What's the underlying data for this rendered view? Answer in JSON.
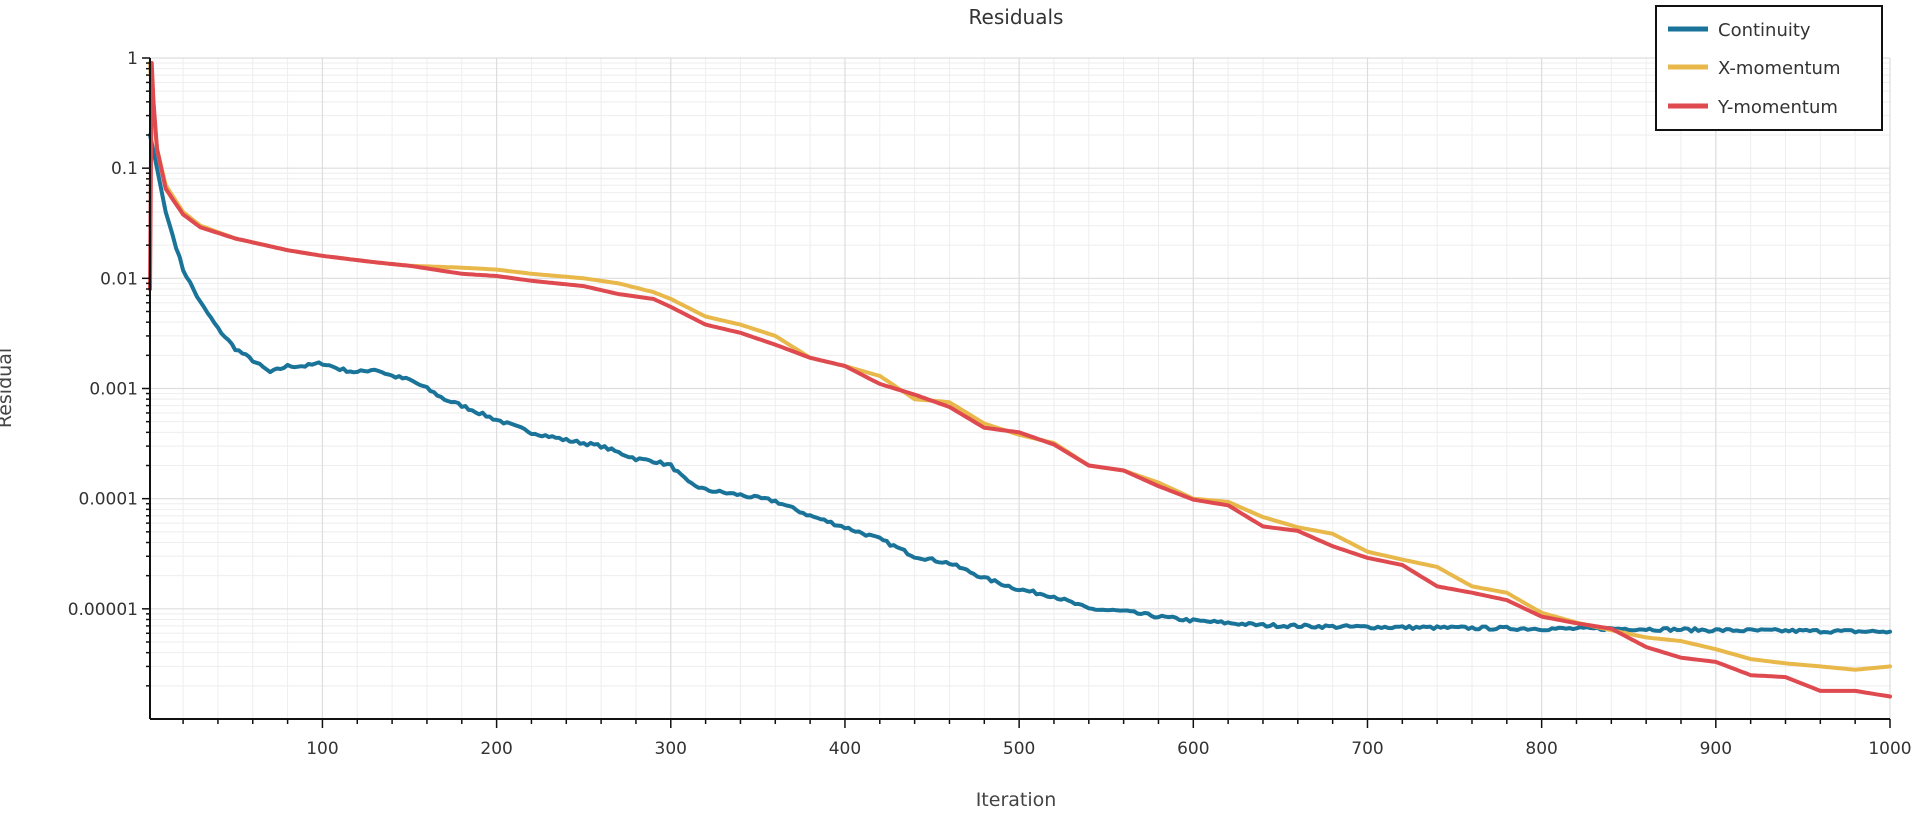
{
  "chart_data": {
    "type": "line",
    "title": "Residuals",
    "xlabel": "Iteration",
    "ylabel": "Residual",
    "y_scale": "log",
    "xlim": [
      1,
      1000
    ],
    "ylim": [
      1e-06,
      1
    ],
    "x_ticks": [
      100,
      200,
      300,
      400,
      500,
      600,
      700,
      800,
      900,
      1000
    ],
    "x_tick_labels": [
      "100",
      "200",
      "300",
      "400",
      "500",
      "600",
      "700",
      "800",
      "900",
      "1000"
    ],
    "y_ticks": [
      1,
      0.1,
      0.01,
      0.001,
      0.0001,
      1e-05
    ],
    "y_tick_labels": [
      "1",
      "0.1",
      "0.01",
      "0.001",
      "0.0001",
      "0.00001"
    ],
    "grid": true,
    "legend_position": "top-right",
    "series": [
      {
        "name": "Continuity",
        "color": "#1a7399",
        "x": [
          1,
          5,
          10,
          20,
          30,
          40,
          50,
          60,
          70,
          80,
          90,
          100,
          110,
          120,
          130,
          140,
          150,
          160,
          170,
          180,
          190,
          200,
          220,
          240,
          260,
          280,
          290,
          300,
          310,
          320,
          340,
          360,
          380,
          400,
          420,
          440,
          460,
          480,
          500,
          520,
          540,
          560,
          580,
          600,
          640,
          680,
          720,
          760,
          800,
          850,
          900,
          950,
          1000
        ],
        "y": [
          0.2,
          0.1,
          0.04,
          0.012,
          0.006,
          0.0035,
          0.0023,
          0.0018,
          0.0014,
          0.0016,
          0.0016,
          0.0017,
          0.0015,
          0.0014,
          0.0015,
          0.0013,
          0.0012,
          0.001,
          0.0008,
          0.0007,
          0.0006,
          0.00052,
          0.0004,
          0.00034,
          0.0003,
          0.00023,
          0.00022,
          0.0002,
          0.00014,
          0.00012,
          0.000108,
          9.5e-05,
          7e-05,
          5.5e-05,
          4.3e-05,
          3e-05,
          2.6e-05,
          1.9e-05,
          1.5e-05,
          1.3e-05,
          1e-05,
          9.5e-06,
          8.5e-06,
          7.8e-06,
          7.1e-06,
          6.9e-06,
          6.8e-06,
          6.7e-06,
          6.6e-06,
          6.6e-06,
          6.4e-06,
          6.3e-06,
          6.2e-06
        ]
      },
      {
        "name": "X-momentum",
        "color": "#e8b84a",
        "x": [
          1,
          2,
          5,
          10,
          20,
          30,
          50,
          80,
          100,
          130,
          150,
          180,
          200,
          220,
          250,
          270,
          290,
          300,
          320,
          340,
          360,
          380,
          400,
          420,
          440,
          460,
          480,
          500,
          520,
          540,
          560,
          580,
          600,
          620,
          640,
          660,
          680,
          700,
          720,
          740,
          760,
          780,
          800,
          820,
          840,
          860,
          880,
          900,
          920,
          940,
          960,
          980,
          1000
        ],
        "y": [
          0.9,
          0.5,
          0.15,
          0.07,
          0.04,
          0.03,
          0.023,
          0.018,
          0.016,
          0.014,
          0.013,
          0.0125,
          0.012,
          0.011,
          0.01,
          0.009,
          0.0075,
          0.0065,
          0.0045,
          0.0038,
          0.003,
          0.0019,
          0.0016,
          0.0013,
          0.0008,
          0.00075,
          0.00048,
          0.00038,
          0.00032,
          0.0002,
          0.00018,
          0.00014,
          0.0001,
          9.35e-05,
          6.8e-05,
          5.5e-05,
          4.8e-05,
          3.3e-05,
          2.8e-05,
          2.4e-05,
          1.6e-05,
          1.4e-05,
          9.2e-06,
          7.5e-06,
          6.4e-06,
          5.5e-06,
          5.1e-06,
          4.3e-06,
          3.5e-06,
          3.2e-06,
          3e-06,
          2.8e-06,
          3e-06
        ]
      },
      {
        "name": "Y-momentum",
        "color": "#de4a4f",
        "x": [
          1,
          2,
          3,
          5,
          10,
          20,
          30,
          50,
          80,
          100,
          130,
          150,
          180,
          200,
          220,
          250,
          270,
          290,
          300,
          320,
          340,
          360,
          380,
          400,
          420,
          440,
          460,
          480,
          500,
          520,
          540,
          560,
          580,
          600,
          620,
          640,
          660,
          680,
          700,
          720,
          740,
          760,
          780,
          800,
          820,
          840,
          860,
          880,
          900,
          920,
          940,
          960,
          980,
          1000
        ],
        "y": [
          0.008,
          0.9,
          0.4,
          0.15,
          0.065,
          0.038,
          0.029,
          0.023,
          0.018,
          0.016,
          0.014,
          0.013,
          0.011,
          0.0105,
          0.0095,
          0.0085,
          0.0072,
          0.0065,
          0.0055,
          0.0038,
          0.0032,
          0.0025,
          0.0019,
          0.0016,
          0.0011,
          0.00088,
          0.00068,
          0.00044,
          0.0004,
          0.00031,
          0.0002,
          0.00018,
          0.00013,
          9.8e-05,
          8.7e-05,
          5.6e-05,
          5.1e-05,
          3.7e-05,
          2.9e-05,
          2.5e-05,
          1.6e-05,
          1.4e-05,
          1.2e-05,
          8.5e-06,
          7.4e-06,
          6.6e-06,
          4.5e-06,
          3.6e-06,
          3.3e-06,
          2.5e-06,
          2.4e-06,
          1.8e-06,
          1.8e-06,
          1.6e-06
        ]
      }
    ]
  }
}
